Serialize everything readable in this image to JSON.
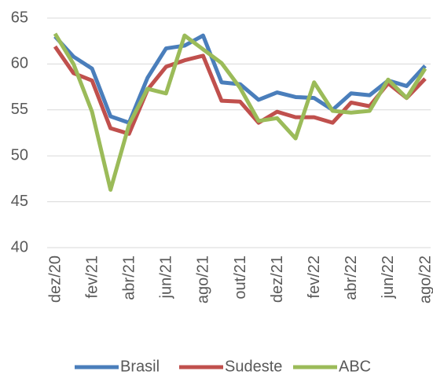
{
  "chart_data": {
    "type": "line",
    "categories": [
      "dez/20",
      null,
      "fev/21",
      null,
      "abr/21",
      null,
      "jun/21",
      null,
      "ago/21",
      null,
      "out/21",
      null,
      "dez/21",
      null,
      "fev/22",
      null,
      "abr/22",
      null,
      "jun/22",
      null,
      "ago/22"
    ],
    "series": [
      {
        "name": "Brasil",
        "color": "#4a7ebb",
        "values": [
          63.0,
          60.8,
          59.5,
          54.3,
          53.6,
          58.5,
          61.7,
          62.0,
          63.1,
          58.0,
          57.8,
          56.1,
          56.9,
          56.4,
          56.3,
          55.0,
          56.8,
          56.6,
          58.2,
          57.6,
          59.8
        ]
      },
      {
        "name": "Sudeste",
        "color": "#c0504d",
        "values": [
          61.9,
          59.0,
          58.2,
          53.0,
          52.4,
          57.2,
          59.7,
          60.4,
          60.9,
          56.0,
          55.9,
          53.6,
          54.8,
          54.2,
          54.2,
          53.6,
          55.8,
          55.4,
          57.9,
          56.3,
          58.4
        ]
      },
      {
        "name": "ABC",
        "color": "#9bbb59",
        "values": [
          63.3,
          60.0,
          54.8,
          46.3,
          53.4,
          57.3,
          56.8,
          63.1,
          61.6,
          60.1,
          57.4,
          53.8,
          54.1,
          51.9,
          58.0,
          54.9,
          54.7,
          54.9,
          58.3,
          56.3,
          59.5
        ]
      }
    ],
    "ylim": [
      40,
      65
    ],
    "yticks": [
      40,
      45,
      50,
      55,
      60,
      65
    ],
    "grid": true,
    "legend": "bottom"
  }
}
